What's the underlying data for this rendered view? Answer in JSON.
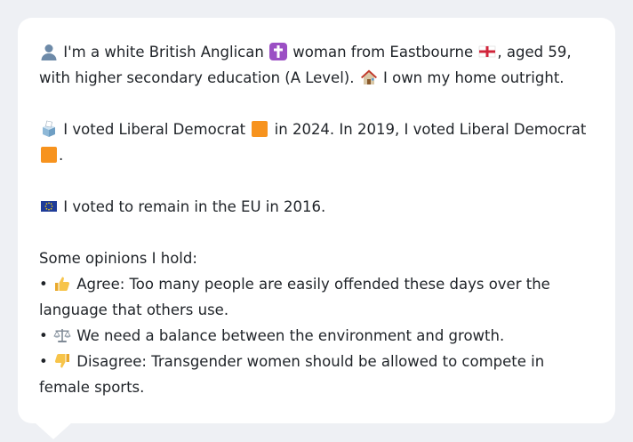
{
  "bio": {
    "intro_a": "I'm a white British Anglican",
    "intro_b": "woman from Eastbourne",
    "intro_c": ", aged 59, with higher secondary education (A Level).",
    "home": "I own my home outright."
  },
  "votes": {
    "a": "I voted Liberal Democrat",
    "b": "in 2024. In 2019, I voted Liberal Democrat",
    "c": "."
  },
  "eu": {
    "text": "I voted to remain in the EU in 2016."
  },
  "opinions": {
    "heading": "Some opinions I hold:",
    "bullet": "•",
    "items": [
      "Agree: Too many people are easily offended these days over the language that others use.",
      "We need a balance between the environment and growth.",
      "Disagree: Transgender women should be allowed to compete in female sports."
    ]
  },
  "icons": {
    "person": "person-silhouette-icon",
    "cross": "latin-cross-icon",
    "england_flag": "england-flag-icon",
    "house": "house-icon",
    "ballot": "ballot-box-icon",
    "orange_square": "orange-square-icon",
    "eu_flag": "eu-flag-icon",
    "thumbs_up": "thumbs-up-icon",
    "scales": "balance-scale-icon",
    "thumbs_down": "thumbs-down-icon"
  },
  "colors": {
    "background": "#eef0f4",
    "bubble": "#ffffff",
    "text": "#1f2328",
    "libdem_orange": "#f7931e"
  }
}
